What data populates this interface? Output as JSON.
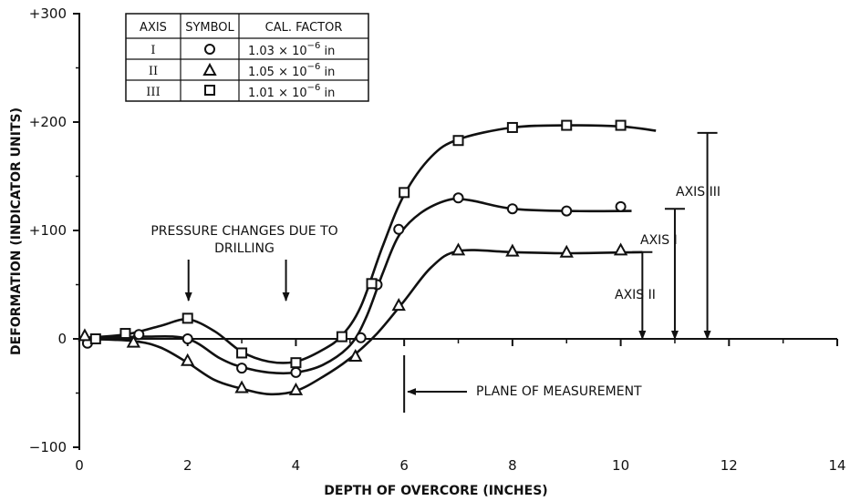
{
  "chart_data": {
    "type": "scatter",
    "xlabel": "DEPTH OF OVERCORE (INCHES)",
    "ylabel": "DEFORMATION (INDICATOR UNITS)",
    "xlim": [
      0,
      14
    ],
    "ylim": [
      -100,
      300
    ],
    "x_ticks": [
      0,
      2,
      4,
      6,
      8,
      10,
      12,
      14
    ],
    "x_tick_labels": [
      "0",
      "2",
      "4",
      "6",
      "8",
      "10",
      "12",
      "14"
    ],
    "y_ticks": [
      300,
      200,
      100,
      0,
      -100
    ],
    "y_tick_labels": [
      "+300",
      "+200",
      "+100",
      "0",
      "−100"
    ],
    "grid": false,
    "series": [
      {
        "name": "I",
        "marker": "circle",
        "points": [
          [
            0.15,
            -4
          ],
          [
            1.1,
            4
          ],
          [
            2,
            0
          ],
          [
            3,
            -27
          ],
          [
            4,
            -31
          ],
          [
            5.2,
            1
          ],
          [
            5.5,
            50
          ],
          [
            5.9,
            101
          ],
          [
            7,
            130
          ],
          [
            8,
            120
          ],
          [
            9,
            118
          ],
          [
            10,
            122
          ]
        ],
        "curve": [
          [
            0.15,
            0
          ],
          [
            1.2,
            2
          ],
          [
            2,
            0
          ],
          [
            2.6,
            -18
          ],
          [
            3,
            -26
          ],
          [
            3.5,
            -31
          ],
          [
            4,
            -31
          ],
          [
            4.5,
            -24
          ],
          [
            5,
            -6
          ],
          [
            5.3,
            20
          ],
          [
            5.6,
            60
          ],
          [
            5.9,
            95
          ],
          [
            6.3,
            116
          ],
          [
            6.8,
            128
          ],
          [
            7.2,
            128
          ],
          [
            8,
            120
          ],
          [
            9,
            118
          ],
          [
            10.2,
            118
          ]
        ]
      },
      {
        "name": "II",
        "marker": "triangle",
        "points": [
          [
            0.1,
            3
          ],
          [
            1,
            -3
          ],
          [
            2,
            -20
          ],
          [
            3,
            -45
          ],
          [
            4,
            -47
          ],
          [
            5.1,
            -16
          ],
          [
            5.9,
            31
          ],
          [
            7,
            82
          ],
          [
            8,
            81
          ],
          [
            9,
            80
          ],
          [
            10,
            82
          ]
        ],
        "curve": [
          [
            0.1,
            0
          ],
          [
            1,
            -2
          ],
          [
            1.5,
            -8
          ],
          [
            2,
            -22
          ],
          [
            2.5,
            -38
          ],
          [
            3,
            -46
          ],
          [
            3.5,
            -51
          ],
          [
            4,
            -48
          ],
          [
            4.5,
            -35
          ],
          [
            5,
            -18
          ],
          [
            5.5,
            5
          ],
          [
            6,
            35
          ],
          [
            6.5,
            66
          ],
          [
            7,
            81
          ],
          [
            8,
            80
          ],
          [
            9,
            79
          ],
          [
            10.4,
            80
          ]
        ]
      },
      {
        "name": "III",
        "marker": "square",
        "points": [
          [
            0.3,
            0
          ],
          [
            0.85,
            5
          ],
          [
            2,
            19
          ],
          [
            3,
            -13
          ],
          [
            4,
            -22
          ],
          [
            4.85,
            2
          ],
          [
            5.4,
            51
          ],
          [
            6,
            135
          ],
          [
            7,
            183
          ],
          [
            8,
            195
          ],
          [
            9,
            197
          ],
          [
            10,
            197
          ]
        ],
        "curve": [
          [
            0.1,
            1
          ],
          [
            0.85,
            4
          ],
          [
            1.5,
            12
          ],
          [
            2,
            18
          ],
          [
            2.5,
            7
          ],
          [
            3,
            -12
          ],
          [
            3.5,
            -21
          ],
          [
            4,
            -21
          ],
          [
            4.5,
            -10
          ],
          [
            4.85,
            3
          ],
          [
            5.2,
            30
          ],
          [
            5.6,
            85
          ],
          [
            6,
            133
          ],
          [
            6.5,
            168
          ],
          [
            7,
            184
          ],
          [
            8,
            195
          ],
          [
            9,
            197
          ],
          [
            10,
            196
          ],
          [
            10.65,
            192
          ]
        ]
      }
    ],
    "legend_table": {
      "headers": [
        "AXIS",
        "SYMBOL",
        "CAL. FACTOR"
      ],
      "rows": [
        {
          "axis": "I",
          "symbol": "circle",
          "factor_base": "1.03 × 10",
          "factor_exp": "−6",
          "factor_unit": " in"
        },
        {
          "axis": "II",
          "symbol": "triangle",
          "factor_base": "1.05 × 10",
          "factor_exp": "−6",
          "factor_unit": " in"
        },
        {
          "axis": "III",
          "symbol": "square",
          "factor_base": "1.01 × 10",
          "factor_exp": "−6",
          "factor_unit": " in"
        }
      ]
    },
    "annotations": {
      "pressure_line1": "PRESSURE CHANGES DUE TO",
      "pressure_line2": "DRILLING",
      "pressure_arrow_x": [
        2,
        3.8
      ],
      "plane_label": "PLANE OF MEASUREMENT",
      "plane_x": 6,
      "dimension_lines": [
        {
          "label": "AXIS II",
          "x": 10.4,
          "top": 80
        },
        {
          "label": "AXIS I",
          "x": 11.0,
          "top": 120
        },
        {
          "label": "AXIS III",
          "x": 11.6,
          "top": 190
        }
      ]
    }
  }
}
